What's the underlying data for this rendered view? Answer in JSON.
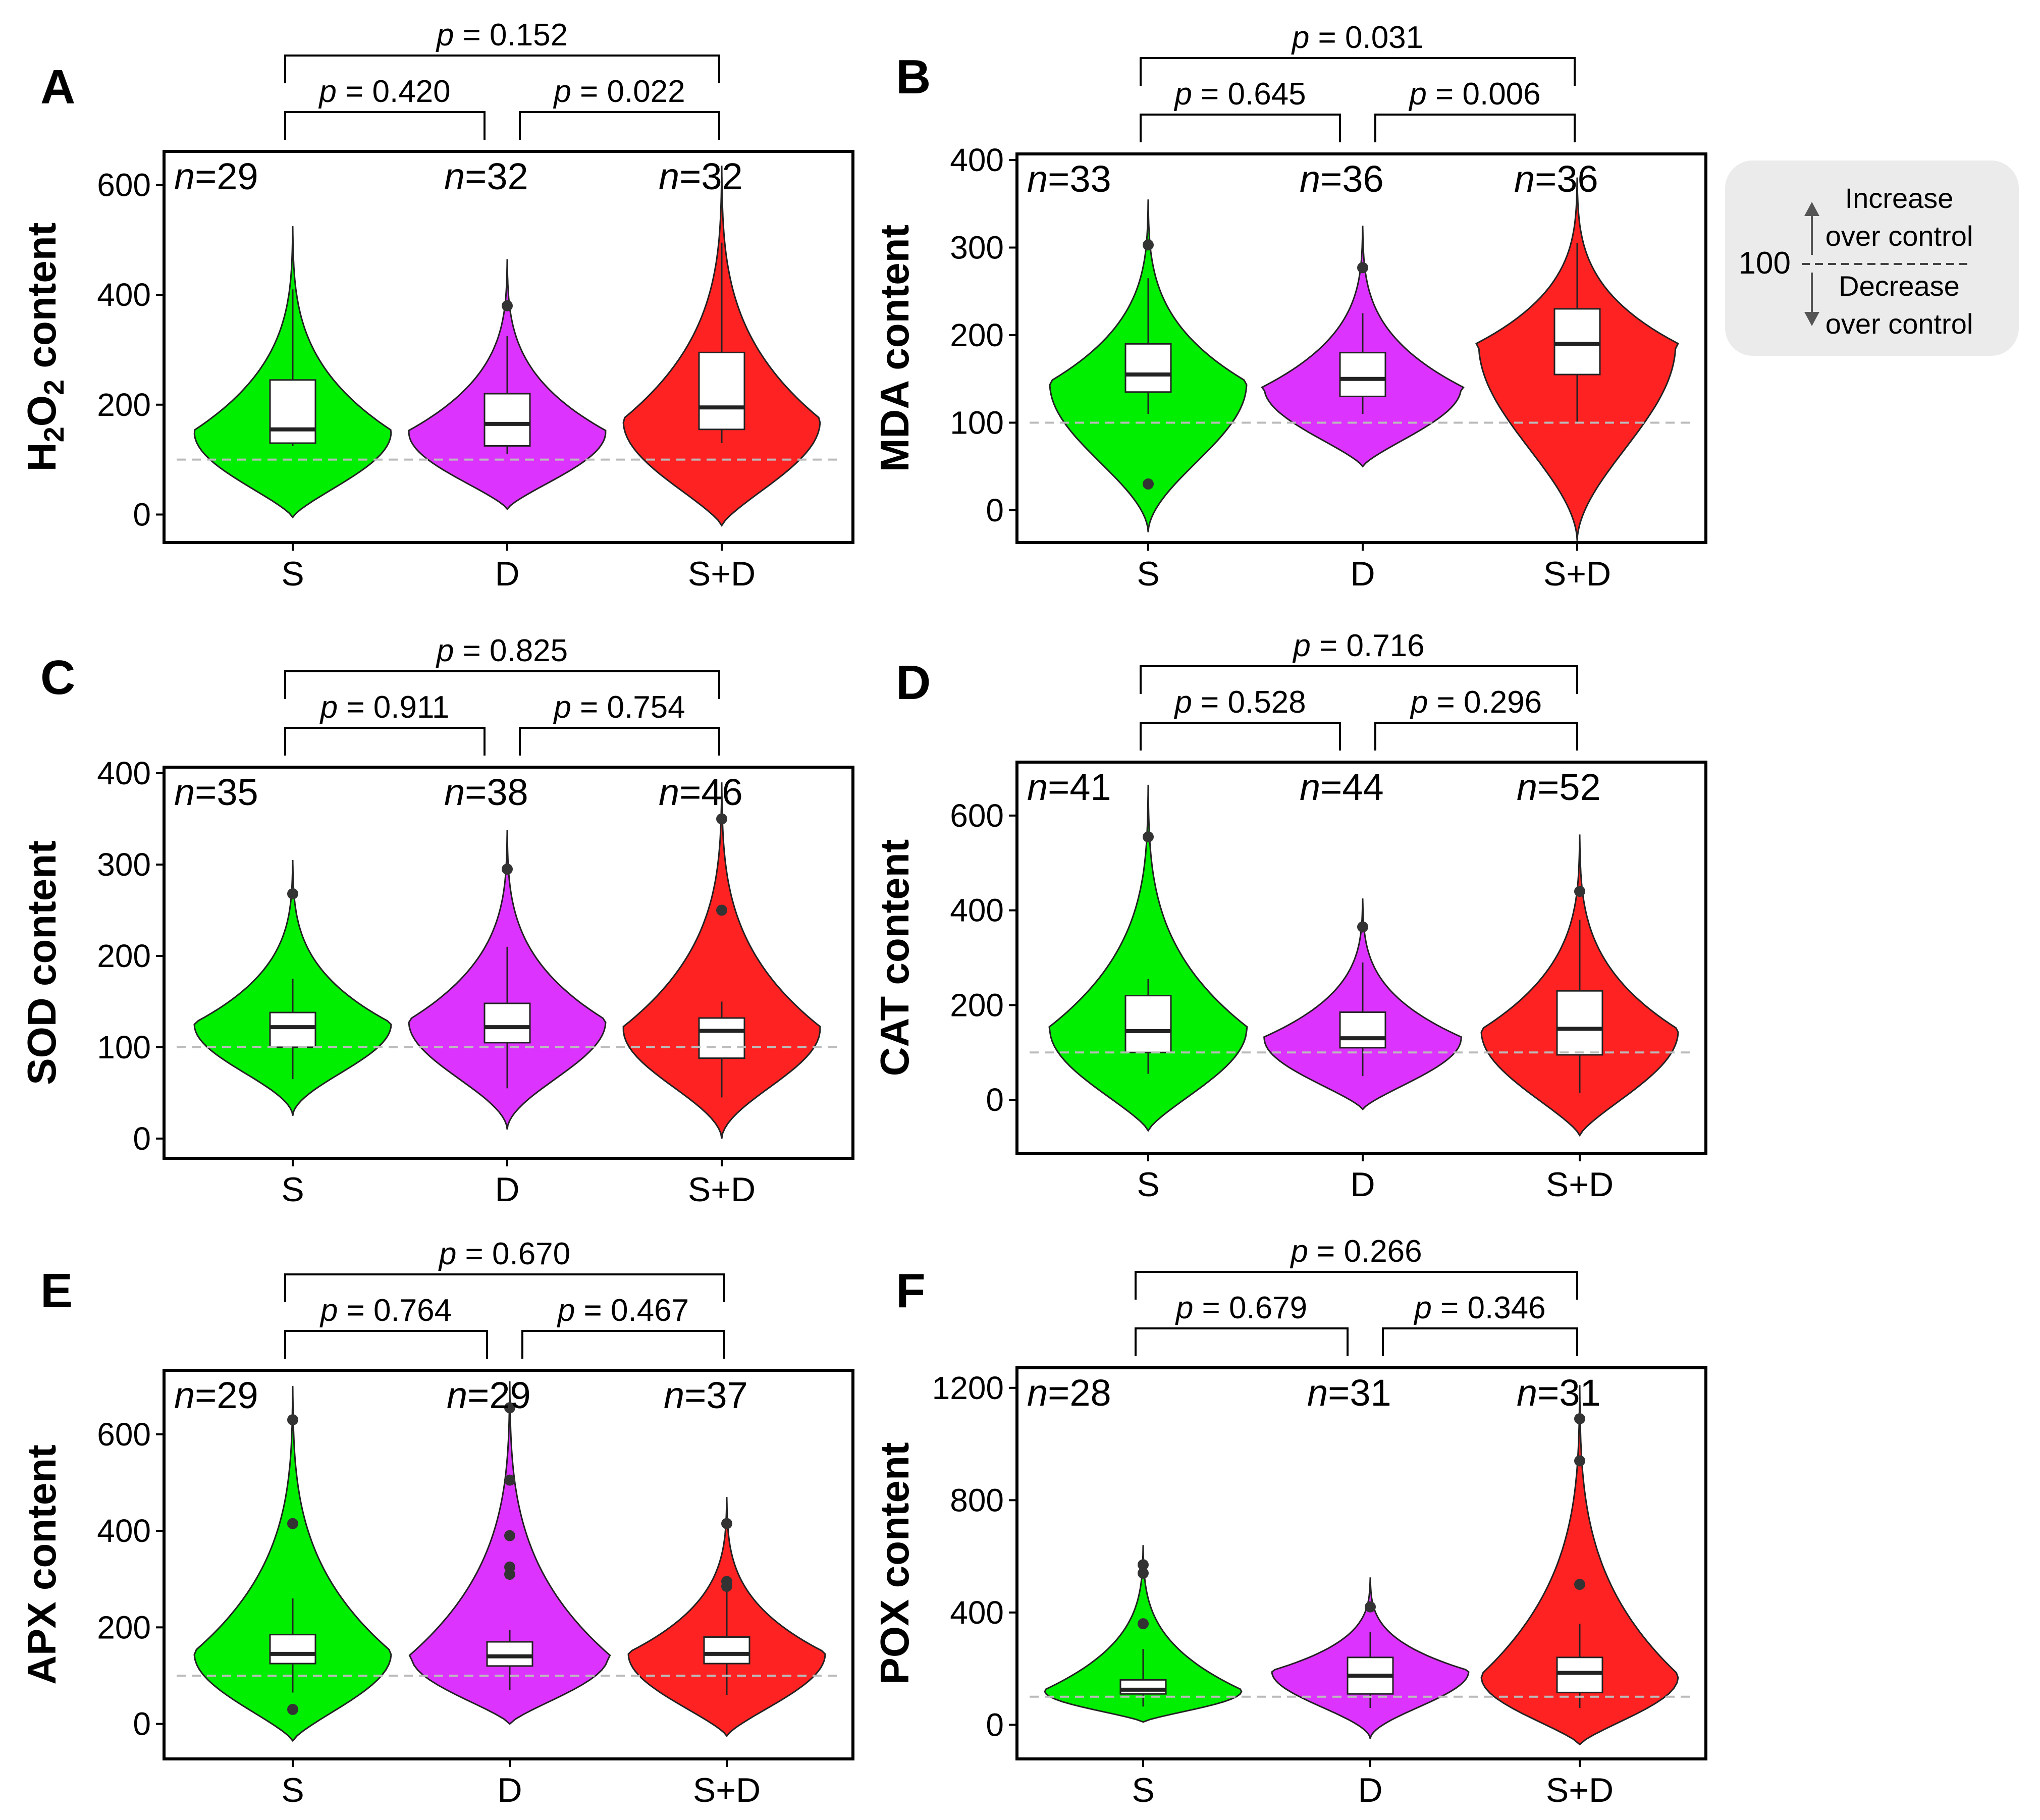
{
  "legend": {
    "value": "100",
    "up": [
      "Increase",
      "over control"
    ],
    "down": [
      "Decrease",
      "over control"
    ]
  },
  "colors": {
    "S": "#00ee00",
    "D": "#dd33ff",
    "S+D": "#ff2222",
    "reference_line": "#bbbbbb",
    "legend_bg": "#ebebeb"
  },
  "chart_data": [
    {
      "panel": "A",
      "type": "violin",
      "ylabel": "H2O2 content",
      "ylabel_sub": "2",
      "categories": [
        "S",
        "D",
        "S+D"
      ],
      "ylim": [
        -40,
        650
      ],
      "yticks": [
        0,
        200,
        400,
        600
      ],
      "reference": 100,
      "n": [
        "29",
        "32",
        "32"
      ],
      "p_values": {
        "S_vs_D": "0.420",
        "D_vs_SD": "0.022",
        "S_vs_SD": "0.152"
      },
      "series": [
        {
          "name": "S",
          "q1": 130,
          "median": 155,
          "q3": 245,
          "whisker_low": 125,
          "whisker_high": 410,
          "outliers": [],
          "range": [
            -5,
            525
          ],
          "peak": 150,
          "shape": "bottom"
        },
        {
          "name": "D",
          "q1": 125,
          "median": 165,
          "q3": 220,
          "whisker_low": 110,
          "whisker_high": 325,
          "outliers": [
            380
          ],
          "range": [
            10,
            465
          ],
          "peak": 150,
          "shape": "bottom"
        },
        {
          "name": "S+D",
          "q1": 155,
          "median": 195,
          "q3": 295,
          "whisker_low": 130,
          "whisker_high": 495,
          "outliers": [],
          "range": [
            -20,
            635
          ],
          "peak": 170,
          "shape": "bottom"
        }
      ]
    },
    {
      "panel": "B",
      "type": "violin",
      "ylabel": "MDA content",
      "categories": [
        "S",
        "D",
        "S+D"
      ],
      "ylim": [
        -30,
        400
      ],
      "yticks": [
        0,
        100,
        200,
        300,
        400
      ],
      "reference": 100,
      "n": [
        "33",
        "36",
        "36"
      ],
      "p_values": {
        "S_vs_D": "0.645",
        "D_vs_SD": "0.006",
        "S_vs_SD": "0.031"
      },
      "series": [
        {
          "name": "S",
          "q1": 135,
          "median": 155,
          "q3": 190,
          "whisker_low": 110,
          "whisker_high": 265,
          "outliers": [
            30,
            303
          ],
          "range": [
            -25,
            355
          ],
          "peak": 145,
          "shape": "mid"
        },
        {
          "name": "D",
          "q1": 130,
          "median": 150,
          "q3": 180,
          "whisker_low": 110,
          "whisker_high": 225,
          "outliers": [
            277
          ],
          "range": [
            50,
            325
          ],
          "peak": 140,
          "shape": "bottom"
        },
        {
          "name": "S+D",
          "q1": 155,
          "median": 190,
          "q3": 230,
          "whisker_low": 100,
          "whisker_high": 305,
          "outliers": [],
          "range": [
            -35,
            380
          ],
          "peak": 190,
          "shape": "mid"
        }
      ]
    },
    {
      "panel": "C",
      "type": "violin",
      "ylabel": "SOD content",
      "categories": [
        "S",
        "D",
        "S+D"
      ],
      "ylim": [
        -15,
        400
      ],
      "yticks": [
        0,
        100,
        200,
        300,
        400
      ],
      "reference": 100,
      "n": [
        "35",
        "38",
        "46"
      ],
      "p_values": {
        "S_vs_D": "0.911",
        "D_vs_SD": "0.754",
        "S_vs_SD": "0.825"
      },
      "series": [
        {
          "name": "S",
          "q1": 100,
          "median": 122,
          "q3": 138,
          "whisker_low": 65,
          "whisker_high": 175,
          "outliers": [
            268
          ],
          "range": [
            25,
            305
          ],
          "peak": 125,
          "shape": "mid"
        },
        {
          "name": "D",
          "q1": 105,
          "median": 122,
          "q3": 148,
          "whisker_low": 55,
          "whisker_high": 210,
          "outliers": [
            295
          ],
          "range": [
            10,
            338
          ],
          "peak": 128,
          "shape": "mid"
        },
        {
          "name": "S+D",
          "q1": 88,
          "median": 118,
          "q3": 132,
          "whisker_low": 45,
          "whisker_high": 150,
          "outliers": [
            250,
            350
          ],
          "range": [
            0,
            390
          ],
          "peak": 120,
          "shape": "mid"
        }
      ]
    },
    {
      "panel": "D",
      "type": "violin",
      "ylabel": "CAT content",
      "categories": [
        "S",
        "D",
        "S+D"
      ],
      "ylim": [
        -100,
        700
      ],
      "yticks": [
        0,
        200,
        400,
        600
      ],
      "reference": 100,
      "n": [
        "41",
        "44",
        "52"
      ],
      "p_values": {
        "S_vs_D": "0.528",
        "D_vs_SD": "0.296",
        "S_vs_SD": "0.716"
      },
      "series": [
        {
          "name": "S",
          "q1": 100,
          "median": 145,
          "q3": 220,
          "whisker_low": 55,
          "whisker_high": 255,
          "outliers": [
            555
          ],
          "range": [
            -65,
            665
          ],
          "peak": 150,
          "shape": "bottom"
        },
        {
          "name": "D",
          "q1": 110,
          "median": 130,
          "q3": 185,
          "whisker_low": 50,
          "whisker_high": 290,
          "outliers": [
            365
          ],
          "range": [
            -20,
            425
          ],
          "peak": 130,
          "shape": "bottom"
        },
        {
          "name": "S+D",
          "q1": 95,
          "median": 150,
          "q3": 230,
          "whisker_low": 15,
          "whisker_high": 380,
          "outliers": [
            440
          ],
          "range": [
            -75,
            560
          ],
          "peak": 145,
          "shape": "bottom"
        }
      ]
    },
    {
      "panel": "E",
      "type": "violin",
      "ylabel": "APX content",
      "categories": [
        "S",
        "D",
        "S+D"
      ],
      "ylim": [
        -60,
        720
      ],
      "yticks": [
        0,
        200,
        400,
        600
      ],
      "reference": 100,
      "n": [
        "29",
        "29",
        "37"
      ],
      "p_values": {
        "S_vs_D": "0.764",
        "D_vs_SD": "0.467",
        "S_vs_SD": "0.670"
      },
      "series": [
        {
          "name": "S",
          "q1": 125,
          "median": 145,
          "q3": 185,
          "whisker_low": 65,
          "whisker_high": 260,
          "outliers": [
            30,
            415,
            630
          ],
          "range": [
            -35,
            700
          ],
          "peak": 145,
          "shape": "bottom"
        },
        {
          "name": "D",
          "q1": 120,
          "median": 140,
          "q3": 170,
          "whisker_low": 70,
          "whisker_high": 195,
          "outliers": [
            310,
            325,
            390,
            505,
            655
          ],
          "range": [
            0,
            710
          ],
          "peak": 140,
          "shape": "bottom"
        },
        {
          "name": "S+D",
          "q1": 125,
          "median": 145,
          "q3": 180,
          "whisker_low": 60,
          "whisker_high": 275,
          "outliers": [
            285,
            295,
            415
          ],
          "range": [
            -25,
            470
          ],
          "peak": 145,
          "shape": "bottom"
        }
      ]
    },
    {
      "panel": "F",
      "type": "violin",
      "ylabel": "POX content",
      "categories": [
        "S",
        "D",
        "S+D"
      ],
      "ylim": [
        -100,
        1250
      ],
      "yticks": [
        0,
        400,
        800,
        1200
      ],
      "reference": 100,
      "n": [
        "28",
        "31",
        "31"
      ],
      "p_values": {
        "S_vs_D": "0.679",
        "D_vs_SD": "0.346",
        "S_vs_SD": "0.266"
      },
      "series": [
        {
          "name": "S",
          "q1": 110,
          "median": 125,
          "q3": 160,
          "whisker_low": 65,
          "whisker_high": 270,
          "outliers": [
            360,
            540,
            570
          ],
          "range": [
            10,
            640
          ],
          "peak": 120,
          "shape": "bottom"
        },
        {
          "name": "D",
          "q1": 110,
          "median": 175,
          "q3": 240,
          "whisker_low": 60,
          "whisker_high": 330,
          "outliers": [
            420
          ],
          "range": [
            -50,
            525
          ],
          "peak": 190,
          "shape": "mid"
        },
        {
          "name": "S+D",
          "q1": 115,
          "median": 185,
          "q3": 240,
          "whisker_low": 60,
          "whisker_high": 360,
          "outliers": [
            500,
            940,
            1090
          ],
          "range": [
            -70,
            1210
          ],
          "peak": 170,
          "shape": "bottom"
        }
      ]
    }
  ]
}
